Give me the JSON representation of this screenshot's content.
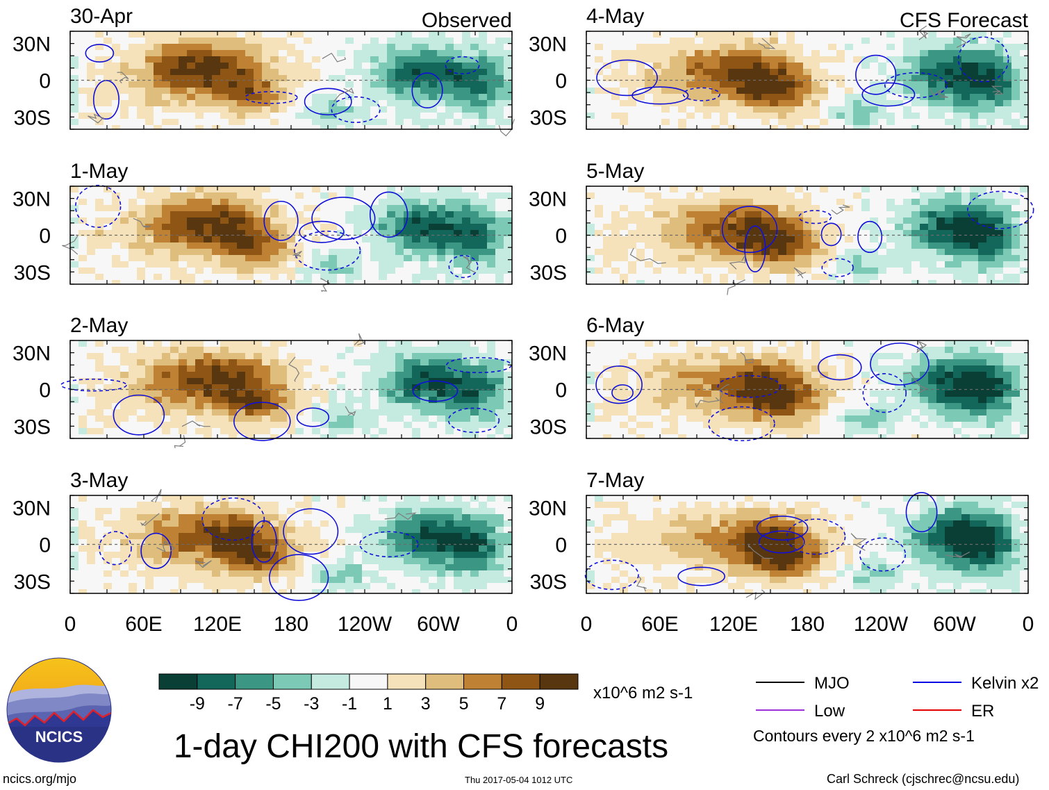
{
  "chart_data": {
    "type": "heatmap",
    "title": "1-day CHI200 with CFS forecasts",
    "variable": "CHI200",
    "units": "x10^6 m2 s-1",
    "contour_note": "Contours every 2 x10^6 m2 s-1",
    "columns": [
      {
        "heading": "Observed",
        "panels": [
          "30-Apr",
          "1-May",
          "2-May",
          "3-May"
        ]
      },
      {
        "heading": "CFS Forecast",
        "panels": [
          "4-May",
          "5-May",
          "6-May",
          "7-May"
        ]
      }
    ],
    "x_ticks": [
      "0",
      "60E",
      "120E",
      "180",
      "120W",
      "60W",
      "0"
    ],
    "x_range_deg": [
      0,
      360
    ],
    "y_ticks": [
      "30N",
      "0",
      "30S"
    ],
    "y_range_deg": [
      -40,
      40
    ],
    "colorbar": {
      "labels": [
        "-9",
        "-7",
        "-5",
        "-3",
        "-1",
        "1",
        "3",
        "5",
        "7",
        "9"
      ],
      "levels": [
        -9,
        -7,
        -5,
        -3,
        -1,
        1,
        3,
        5,
        7,
        9
      ],
      "colors": [
        "#0a3f36",
        "#13675a",
        "#3c9684",
        "#7cc9b5",
        "#c5eae0",
        "#f7f7f7",
        "#f5e2bb",
        "#dfbe7d",
        "#bf8234",
        "#8e5514",
        "#583610"
      ]
    },
    "legend": [
      {
        "label": "MJO",
        "color": "#000000"
      },
      {
        "label": "Kelvin x2",
        "color": "#0000e0"
      },
      {
        "label": "Low",
        "color": "#9b30d9"
      },
      {
        "label": "ER",
        "color": "#e00000"
      }
    ]
  },
  "footer": {
    "logo_text": "NCICS",
    "left": "ncics.org/mjo",
    "center": "Thu 2017-05-04 1012 UTC",
    "right": "Carl Schreck (cjschrec@ncsu.edu)"
  }
}
